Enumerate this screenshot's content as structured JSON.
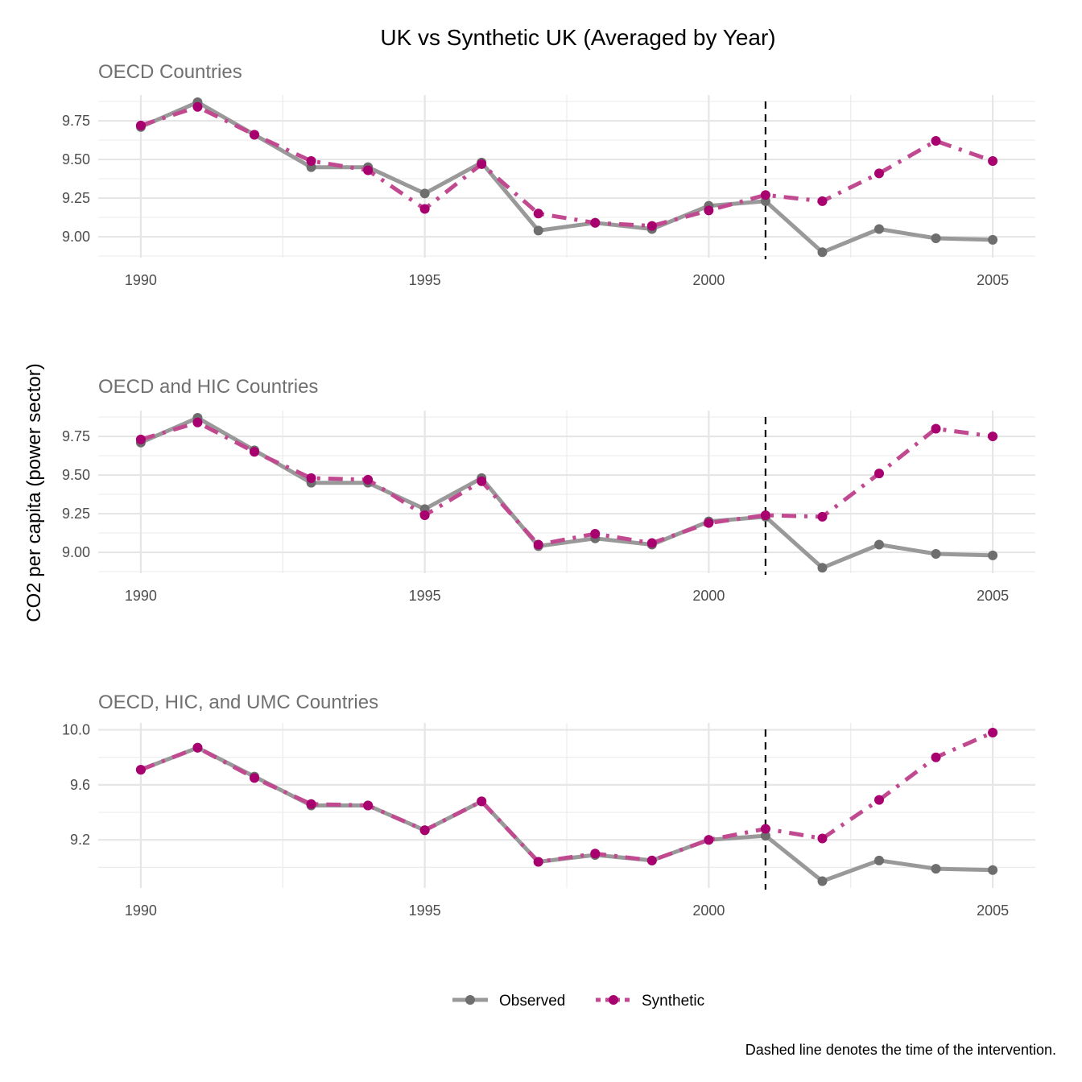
{
  "chart_data": {
    "type": "line",
    "title": "UK vs Synthetic UK (Averaged by Year)",
    "ylabel": "CO2 per capita (power sector)",
    "xlabel": "",
    "caption": "Dashed line denotes the time of the intervention.",
    "legend_position": "bottom",
    "legend": [
      {
        "name": "Observed",
        "color": "#6e6e6e",
        "line_color": "#999999",
        "linetype": "solid"
      },
      {
        "name": "Synthetic",
        "color": "#a8006e",
        "line_color": "#c1498f",
        "linetype": "dotdash"
      }
    ],
    "intervention_year": 2001,
    "x": [
      1990,
      1991,
      1992,
      1993,
      1994,
      1995,
      1996,
      1997,
      1998,
      1999,
      2000,
      2001,
      2002,
      2003,
      2004,
      2005
    ],
    "xlim": [
      1989.25,
      2005.75
    ],
    "xticks": [
      1990,
      1995,
      2000,
      2005
    ],
    "xtick_labels": [
      "1990",
      "1995",
      "2000",
      "2005"
    ],
    "grid": true,
    "panels": [
      {
        "subtitle": "OECD Countries",
        "ylim": [
          8.865,
          9.917
        ],
        "yticks": [
          9.0,
          9.25,
          9.5,
          9.75
        ],
        "ytick_labels": [
          "9.00",
          "9.25",
          "9.50",
          "9.75"
        ],
        "series": [
          {
            "name": "Observed",
            "values": [
              9.71,
              9.87,
              9.66,
              9.45,
              9.45,
              9.28,
              9.48,
              9.04,
              9.09,
              9.05,
              9.2,
              9.23,
              8.9,
              9.05,
              8.99,
              8.98
            ]
          },
          {
            "name": "Synthetic",
            "values": [
              9.72,
              9.84,
              9.66,
              9.49,
              9.43,
              9.18,
              9.47,
              9.15,
              9.09,
              9.07,
              9.17,
              9.27,
              9.23,
              9.41,
              9.62,
              9.49
            ]
          }
        ]
      },
      {
        "subtitle": "OECD and HIC Countries",
        "ylim": [
          8.865,
          9.917
        ],
        "yticks": [
          9.0,
          9.25,
          9.5,
          9.75
        ],
        "ytick_labels": [
          "9.00",
          "9.25",
          "9.50",
          "9.75"
        ],
        "series": [
          {
            "name": "Observed",
            "values": [
              9.71,
              9.87,
              9.66,
              9.45,
              9.45,
              9.28,
              9.48,
              9.04,
              9.09,
              9.05,
              9.2,
              9.23,
              8.9,
              9.05,
              8.99,
              8.98
            ]
          },
          {
            "name": "Synthetic",
            "values": [
              9.73,
              9.84,
              9.65,
              9.48,
              9.47,
              9.24,
              9.46,
              9.05,
              9.12,
              9.06,
              9.19,
              9.24,
              9.23,
              9.51,
              9.8,
              9.75
            ]
          }
        ]
      },
      {
        "subtitle": "OECD, HIC, and UMC Countries",
        "ylim": [
          8.85,
          10.05
        ],
        "yticks": [
          9.2,
          9.6,
          10.0
        ],
        "ytick_labels": [
          "9.2",
          "9.6",
          "10.0"
        ],
        "series": [
          {
            "name": "Observed",
            "values": [
              9.71,
              9.87,
              9.66,
              9.45,
              9.45,
              9.27,
              9.48,
              9.04,
              9.09,
              9.05,
              9.2,
              9.23,
              8.9,
              9.05,
              8.99,
              8.98
            ]
          },
          {
            "name": "Synthetic",
            "values": [
              9.71,
              9.87,
              9.65,
              9.46,
              9.45,
              9.27,
              9.48,
              9.04,
              9.1,
              9.05,
              9.2,
              9.28,
              9.21,
              9.49,
              9.8,
              9.98
            ]
          }
        ]
      }
    ]
  }
}
